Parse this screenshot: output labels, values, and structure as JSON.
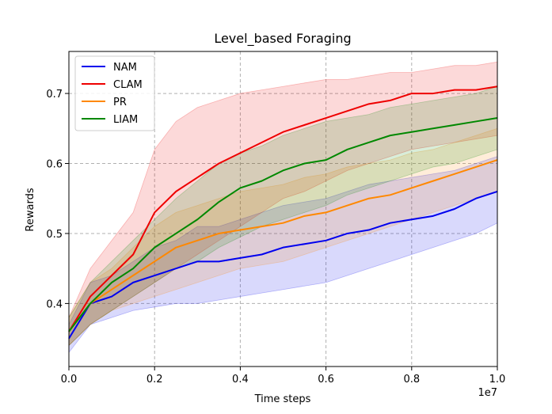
{
  "chart_data": {
    "type": "line",
    "title": "Level_based Foraging",
    "xlabel": "Time steps",
    "ylabel": "Rewards",
    "x_scale_label": "1e7",
    "xlim": [
      0,
      1.0
    ],
    "ylim": [
      0.31,
      0.76
    ],
    "x_ticks": [
      "0.0",
      "0.2",
      "0.4",
      "0.6",
      "0.8",
      "1.0"
    ],
    "y_ticks": [
      "0.4",
      "0.5",
      "0.6",
      "0.7"
    ],
    "grid": true,
    "legend_position": "top-left",
    "x": [
      0.0,
      0.05,
      0.1,
      0.15,
      0.2,
      0.25,
      0.3,
      0.35,
      0.4,
      0.45,
      0.5,
      0.55,
      0.6,
      0.65,
      0.7,
      0.75,
      0.8,
      0.85,
      0.9,
      0.95,
      1.0
    ],
    "series": [
      {
        "name": "NAM",
        "color": "#0000ee",
        "values": [
          0.35,
          0.4,
          0.41,
          0.43,
          0.44,
          0.45,
          0.46,
          0.46,
          0.465,
          0.47,
          0.48,
          0.485,
          0.49,
          0.5,
          0.505,
          0.515,
          0.52,
          0.525,
          0.535,
          0.55,
          0.56
        ],
        "lower": [
          0.33,
          0.37,
          0.38,
          0.39,
          0.395,
          0.4,
          0.4,
          0.405,
          0.41,
          0.415,
          0.42,
          0.425,
          0.43,
          0.44,
          0.45,
          0.46,
          0.47,
          0.48,
          0.49,
          0.5,
          0.515
        ],
        "upper": [
          0.37,
          0.43,
          0.44,
          0.46,
          0.48,
          0.49,
          0.51,
          0.51,
          0.52,
          0.53,
          0.54,
          0.545,
          0.55,
          0.56,
          0.57,
          0.575,
          0.58,
          0.585,
          0.59,
          0.6,
          0.61
        ]
      },
      {
        "name": "CLAM",
        "color": "#ee0000",
        "values": [
          0.36,
          0.41,
          0.44,
          0.47,
          0.53,
          0.56,
          0.58,
          0.6,
          0.615,
          0.63,
          0.645,
          0.655,
          0.665,
          0.675,
          0.685,
          0.69,
          0.7,
          0.7,
          0.705,
          0.705,
          0.71
        ],
        "lower": [
          0.34,
          0.37,
          0.39,
          0.41,
          0.43,
          0.45,
          0.47,
          0.49,
          0.51,
          0.53,
          0.55,
          0.56,
          0.575,
          0.59,
          0.6,
          0.61,
          0.62,
          0.625,
          0.63,
          0.635,
          0.64
        ],
        "upper": [
          0.38,
          0.45,
          0.49,
          0.53,
          0.62,
          0.66,
          0.68,
          0.69,
          0.7,
          0.705,
          0.71,
          0.715,
          0.72,
          0.72,
          0.725,
          0.73,
          0.73,
          0.735,
          0.74,
          0.74,
          0.745
        ]
      },
      {
        "name": "PR",
        "color": "#ff8800",
        "values": [
          0.36,
          0.4,
          0.42,
          0.44,
          0.46,
          0.48,
          0.49,
          0.5,
          0.505,
          0.51,
          0.515,
          0.525,
          0.53,
          0.54,
          0.55,
          0.555,
          0.565,
          0.575,
          0.585,
          0.595,
          0.605
        ],
        "lower": [
          0.34,
          0.37,
          0.39,
          0.4,
          0.41,
          0.42,
          0.43,
          0.44,
          0.45,
          0.455,
          0.46,
          0.47,
          0.48,
          0.49,
          0.5,
          0.51,
          0.52,
          0.53,
          0.54,
          0.55,
          0.56
        ],
        "upper": [
          0.38,
          0.43,
          0.45,
          0.48,
          0.51,
          0.53,
          0.54,
          0.55,
          0.56,
          0.565,
          0.57,
          0.58,
          0.585,
          0.595,
          0.6,
          0.605,
          0.615,
          0.62,
          0.63,
          0.64,
          0.65
        ]
      },
      {
        "name": "LIAM",
        "color": "#008800",
        "values": [
          0.36,
          0.4,
          0.43,
          0.45,
          0.48,
          0.5,
          0.52,
          0.545,
          0.565,
          0.575,
          0.59,
          0.6,
          0.605,
          0.62,
          0.63,
          0.64,
          0.645,
          0.65,
          0.655,
          0.66,
          0.665
        ],
        "lower": [
          0.34,
          0.37,
          0.39,
          0.41,
          0.43,
          0.45,
          0.46,
          0.48,
          0.495,
          0.51,
          0.52,
          0.53,
          0.54,
          0.555,
          0.565,
          0.575,
          0.585,
          0.595,
          0.6,
          0.61,
          0.62
        ],
        "upper": [
          0.38,
          0.43,
          0.46,
          0.49,
          0.52,
          0.55,
          0.575,
          0.6,
          0.615,
          0.625,
          0.64,
          0.65,
          0.66,
          0.665,
          0.67,
          0.68,
          0.685,
          0.69,
          0.695,
          0.7,
          0.71
        ]
      }
    ]
  }
}
